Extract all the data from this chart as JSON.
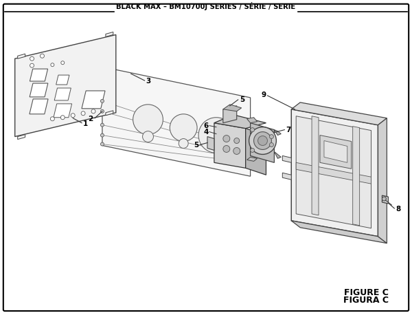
{
  "title": "BLACK MAX – BM10700J SERIES / SÉRIE / SERIE",
  "figure_label": "FIGURE C",
  "figure_label2": "FIGURA C",
  "bg_color": "#ffffff",
  "border_color": "#000000",
  "panel1_color": "#f2f2f2",
  "panel2_color": "#f5f5f5",
  "box_color": "#eeeeee",
  "part_color": "#e0e0e0",
  "dark_color": "#333333",
  "mid_color": "#aaaaaa"
}
